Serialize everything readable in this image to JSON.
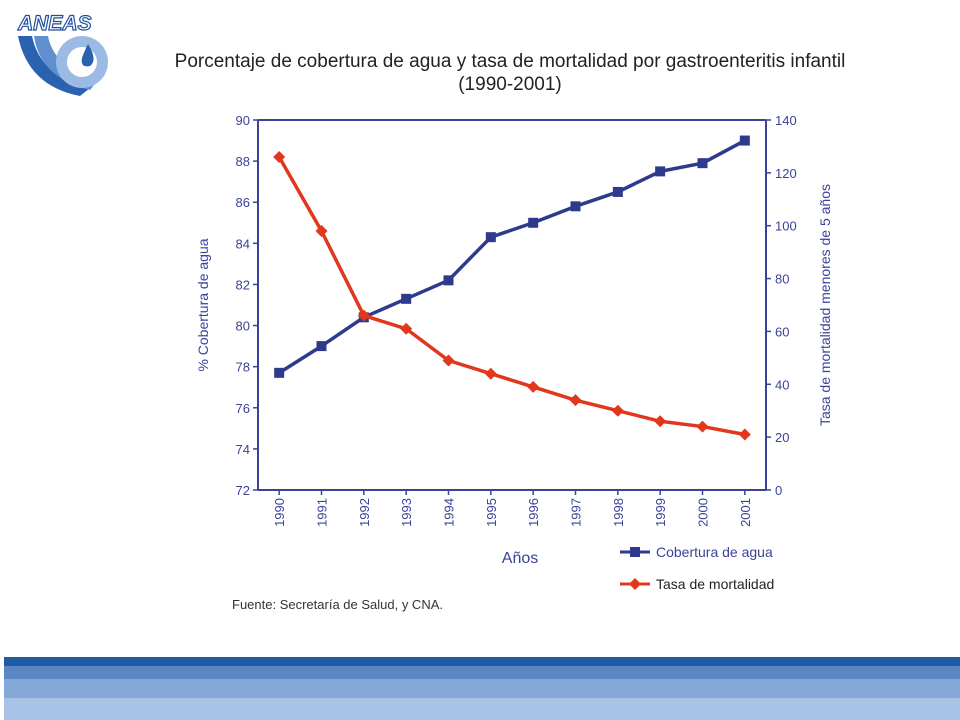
{
  "logo": {
    "text": "ANEAS"
  },
  "title": {
    "line1": "Porcentaje de cobertura de agua y tasa de mortalidad por gastroenteritis infantil",
    "line2": "(1990-2001)"
  },
  "source": "Fuente: Secretaría de Salud, y CNA.",
  "colors": {
    "cobertura": "#2e3a8c",
    "mortalidad": "#e2361d",
    "axis": "#3a4399",
    "axis_text": "#3a4399",
    "band_dark": "#1f5aa6",
    "band_mid": "#5b86c4",
    "band_light": "#86a8d8",
    "band_pale": "#a9c3e6"
  },
  "chart_data": {
    "type": "line",
    "title": "Porcentaje de cobertura de agua y tasa de mortalidad por gastroenteritis infantil (1990-2001)",
    "xlabel": "Años",
    "ylabel_left": "% Cobertura de agua",
    "ylabel_right": "Tasa de mortalidad menores de 5 años",
    "categories": [
      "1990",
      "1991",
      "1992",
      "1993",
      "1994",
      "1995",
      "1996",
      "1997",
      "1998",
      "1999",
      "2000",
      "2001"
    ],
    "ylim_left": [
      72,
      90
    ],
    "yticks_left": [
      72,
      74,
      76,
      78,
      80,
      82,
      84,
      86,
      88,
      90
    ],
    "ylim_right": [
      0,
      140
    ],
    "yticks_right": [
      0,
      20,
      40,
      60,
      80,
      100,
      120,
      140
    ],
    "grid": false,
    "legend_position": "bottom-right",
    "series": [
      {
        "name": "Cobertura de agua",
        "axis": "left",
        "marker": "square",
        "values": [
          77.7,
          79.0,
          80.4,
          81.3,
          82.2,
          84.3,
          85.0,
          85.8,
          86.5,
          87.5,
          87.9,
          89.0
        ]
      },
      {
        "name": "Tasa de mortalidad",
        "axis": "right",
        "marker": "diamond",
        "values": [
          126,
          98,
          66,
          61,
          49,
          44,
          39,
          34,
          30,
          26,
          24,
          21
        ]
      }
    ]
  }
}
